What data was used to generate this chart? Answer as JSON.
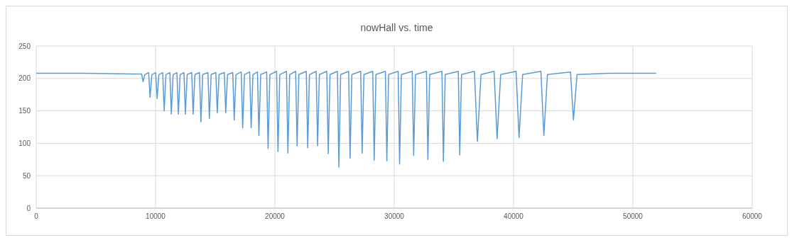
{
  "chart_data": {
    "type": "line",
    "title": "nowHall vs. time",
    "x": [
      0,
      4000,
      8000,
      8830,
      8950,
      9100,
      9420,
      9540,
      9690,
      10010,
      10130,
      10280,
      10600,
      10720,
      10870,
      11200,
      11320,
      11470,
      11790,
      11910,
      12060,
      12380,
      12500,
      12650,
      13030,
      13150,
      13300,
      13680,
      13800,
      13950,
      14390,
      14510,
      14660,
      15050,
      15170,
      15320,
      15760,
      15880,
      16030,
      16470,
      16590,
      16740,
      17180,
      17300,
      17450,
      17890,
      18010,
      18160,
      18540,
      18660,
      18810,
      19310,
      19430,
      19580,
      20140,
      20260,
      20410,
      20970,
      21090,
      21240,
      21740,
      21860,
      22010,
      22630,
      22750,
      22900,
      23460,
      23580,
      23730,
      24350,
      24470,
      24620,
      25240,
      25360,
      25510,
      26180,
      26300,
      26450,
      27190,
      27310,
      27460,
      28200,
      28320,
      28470,
      29260,
      29380,
      29530,
      30330,
      30450,
      30600,
      31510,
      31630,
      31780,
      32700,
      32820,
      32970,
      34000,
      34120,
      34270,
      35370,
      35490,
      35640,
      36720,
      36970,
      37270,
      38370,
      38620,
      38920,
      40210,
      40460,
      40760,
      42290,
      42540,
      42840,
      44770,
      45020,
      45320,
      48000,
      51950
    ],
    "values": [
      208,
      208,
      207,
      207,
      195,
      206,
      209,
      171,
      206,
      209,
      169,
      206,
      209,
      150,
      206,
      209,
      145,
      206,
      209,
      145,
      206,
      209,
      145,
      206,
      209,
      145,
      206,
      209,
      133,
      206,
      209,
      138,
      206,
      209,
      147,
      206,
      209,
      147,
      206,
      209,
      136,
      206,
      210,
      124,
      206,
      210,
      124,
      206,
      210,
      112,
      206,
      210,
      92,
      206,
      211,
      87,
      206,
      211,
      85,
      206,
      211,
      96,
      206,
      211,
      93,
      206,
      211,
      96,
      206,
      211,
      84,
      206,
      211,
      63,
      206,
      211,
      77,
      206,
      211,
      85,
      206,
      211,
      74,
      206,
      211,
      73,
      206,
      211,
      68,
      206,
      211,
      81,
      206,
      211,
      75,
      206,
      211,
      72,
      206,
      211,
      82,
      206,
      211,
      103,
      206,
      211,
      107,
      206,
      211,
      109,
      206,
      211,
      112,
      206,
      210,
      136,
      206,
      208,
      208
    ],
    "color": "#5b9bd5",
    "marker": "none",
    "line_style": "solid",
    "xlim": [
      0,
      60000
    ],
    "xticks": [
      0,
      10000,
      20000,
      30000,
      40000,
      50000,
      60000
    ],
    "ylim": [
      0,
      250
    ],
    "yticks": [
      0,
      50,
      100,
      150,
      200,
      250
    ],
    "grid": true
  }
}
